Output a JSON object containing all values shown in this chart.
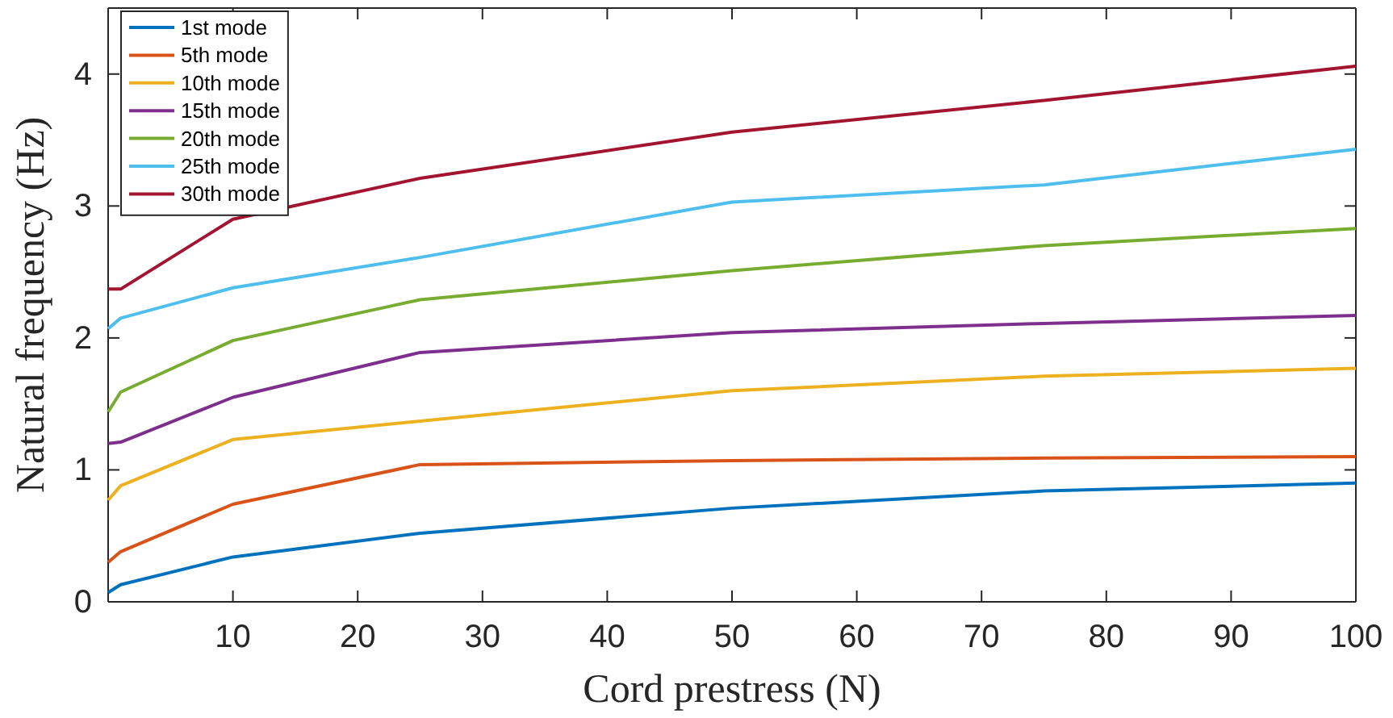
{
  "chart_data": {
    "type": "line",
    "xlabel": "Cord prestress (N)",
    "ylabel": "Natural frequency (Hz)",
    "x": [
      0,
      1,
      10,
      25,
      50,
      75,
      100
    ],
    "xlim": [
      0,
      100
    ],
    "xticks": [
      10,
      20,
      30,
      40,
      50,
      60,
      70,
      80,
      90,
      100
    ],
    "ylim": [
      0,
      4.5
    ],
    "yticks": [
      0,
      1,
      2,
      3,
      4
    ],
    "legend": "top left",
    "grid": false,
    "marker": "none",
    "line_style": "solid",
    "series": [
      {
        "name": "1st mode",
        "color": "#0072bd",
        "values": [
          0.07,
          0.13,
          0.34,
          0.52,
          0.71,
          0.84,
          0.9
        ]
      },
      {
        "name": "5th mode",
        "color": "#d95319",
        "values": [
          0.3,
          0.38,
          0.74,
          1.04,
          1.07,
          1.09,
          1.1
        ]
      },
      {
        "name": "10th mode",
        "color": "#edb120",
        "values": [
          0.77,
          0.88,
          1.23,
          1.37,
          1.6,
          1.71,
          1.77
        ]
      },
      {
        "name": "15th mode",
        "color": "#7e2f8e",
        "values": [
          1.2,
          1.21,
          1.55,
          1.89,
          2.04,
          2.11,
          2.17
        ]
      },
      {
        "name": "20th mode",
        "color": "#77ac30",
        "values": [
          1.44,
          1.59,
          1.98,
          2.29,
          2.51,
          2.7,
          2.83
        ]
      },
      {
        "name": "25th mode",
        "color": "#4dbeee",
        "values": [
          2.07,
          2.15,
          2.38,
          2.61,
          3.03,
          3.16,
          3.43
        ]
      },
      {
        "name": "30th mode",
        "color": "#a2142f",
        "values": [
          2.37,
          2.37,
          2.9,
          3.21,
          3.56,
          3.8,
          4.06
        ]
      }
    ]
  }
}
